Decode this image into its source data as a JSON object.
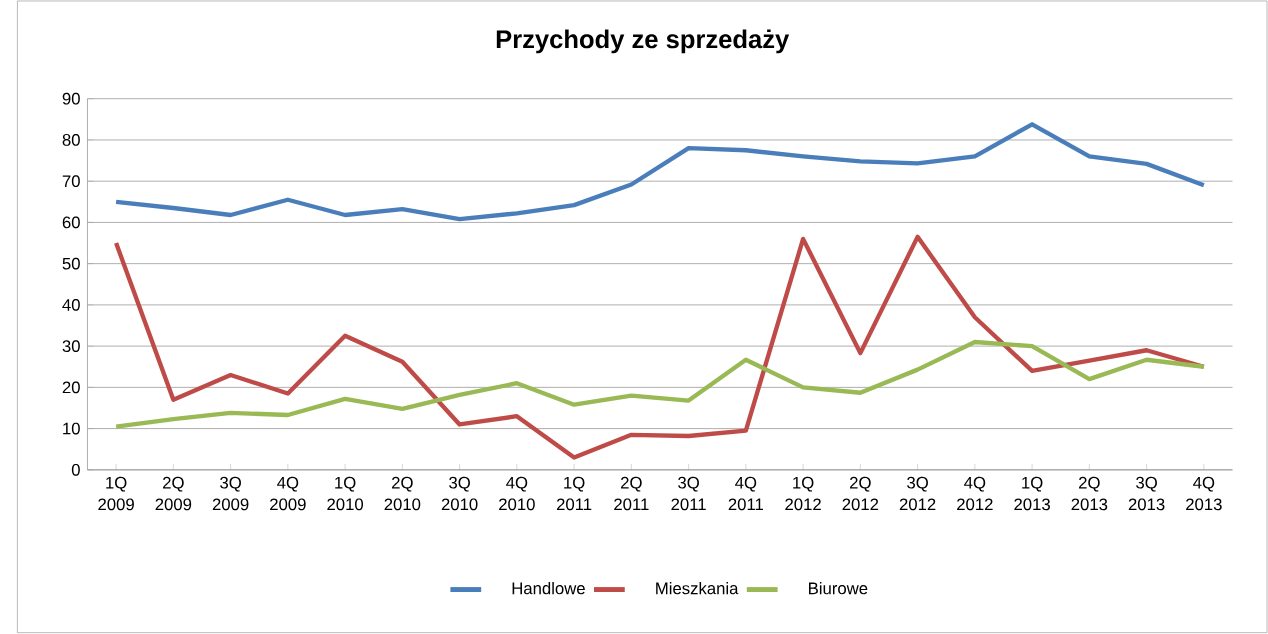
{
  "chart_data": {
    "type": "line",
    "title": "Przychody ze sprzedaży",
    "categories": [
      "1Q 2009",
      "2Q 2009",
      "3Q 2009",
      "4Q 2009",
      "1Q 2010",
      "2Q 2010",
      "3Q 2010",
      "4Q 2010",
      "1Q 2011",
      "2Q 2011",
      "3Q 2011",
      "4Q 2011",
      "1Q 2012",
      "2Q 2012",
      "3Q 2012",
      "4Q 2012",
      "1Q 2013",
      "2Q 2013",
      "3Q 2013",
      "4Q 2013"
    ],
    "series": [
      {
        "name": "Handlowe",
        "color": "#4a7ebb",
        "values": [
          65,
          63.5,
          61.8,
          65.5,
          61.8,
          63.2,
          60.8,
          62.2,
          64.2,
          69.2,
          78,
          77.5,
          76,
          74.8,
          74.3,
          76,
          83.8,
          76,
          74.2,
          69
        ]
      },
      {
        "name": "Mieszkania",
        "color": "#be4b48",
        "values": [
          55,
          17,
          23,
          18.5,
          32.5,
          26.2,
          11,
          13,
          3,
          8.5,
          8.2,
          9.5,
          56,
          28.3,
          56.5,
          37,
          24,
          26.5,
          29,
          25
        ]
      },
      {
        "name": "Biurowe",
        "color": "#98b954",
        "values": [
          10.5,
          12.3,
          13.8,
          13.3,
          17.2,
          14.8,
          18.2,
          21,
          15.8,
          18,
          16.8,
          26.7,
          20,
          18.7,
          24.3,
          31,
          30,
          22,
          26.7,
          25
        ]
      }
    ],
    "ylim": [
      0,
      90
    ],
    "yticks": [
      0,
      10,
      20,
      30,
      40,
      50,
      60,
      70,
      80,
      90
    ],
    "grid": "y",
    "legend": "bottom",
    "marker": "none",
    "line_style": "solid"
  }
}
